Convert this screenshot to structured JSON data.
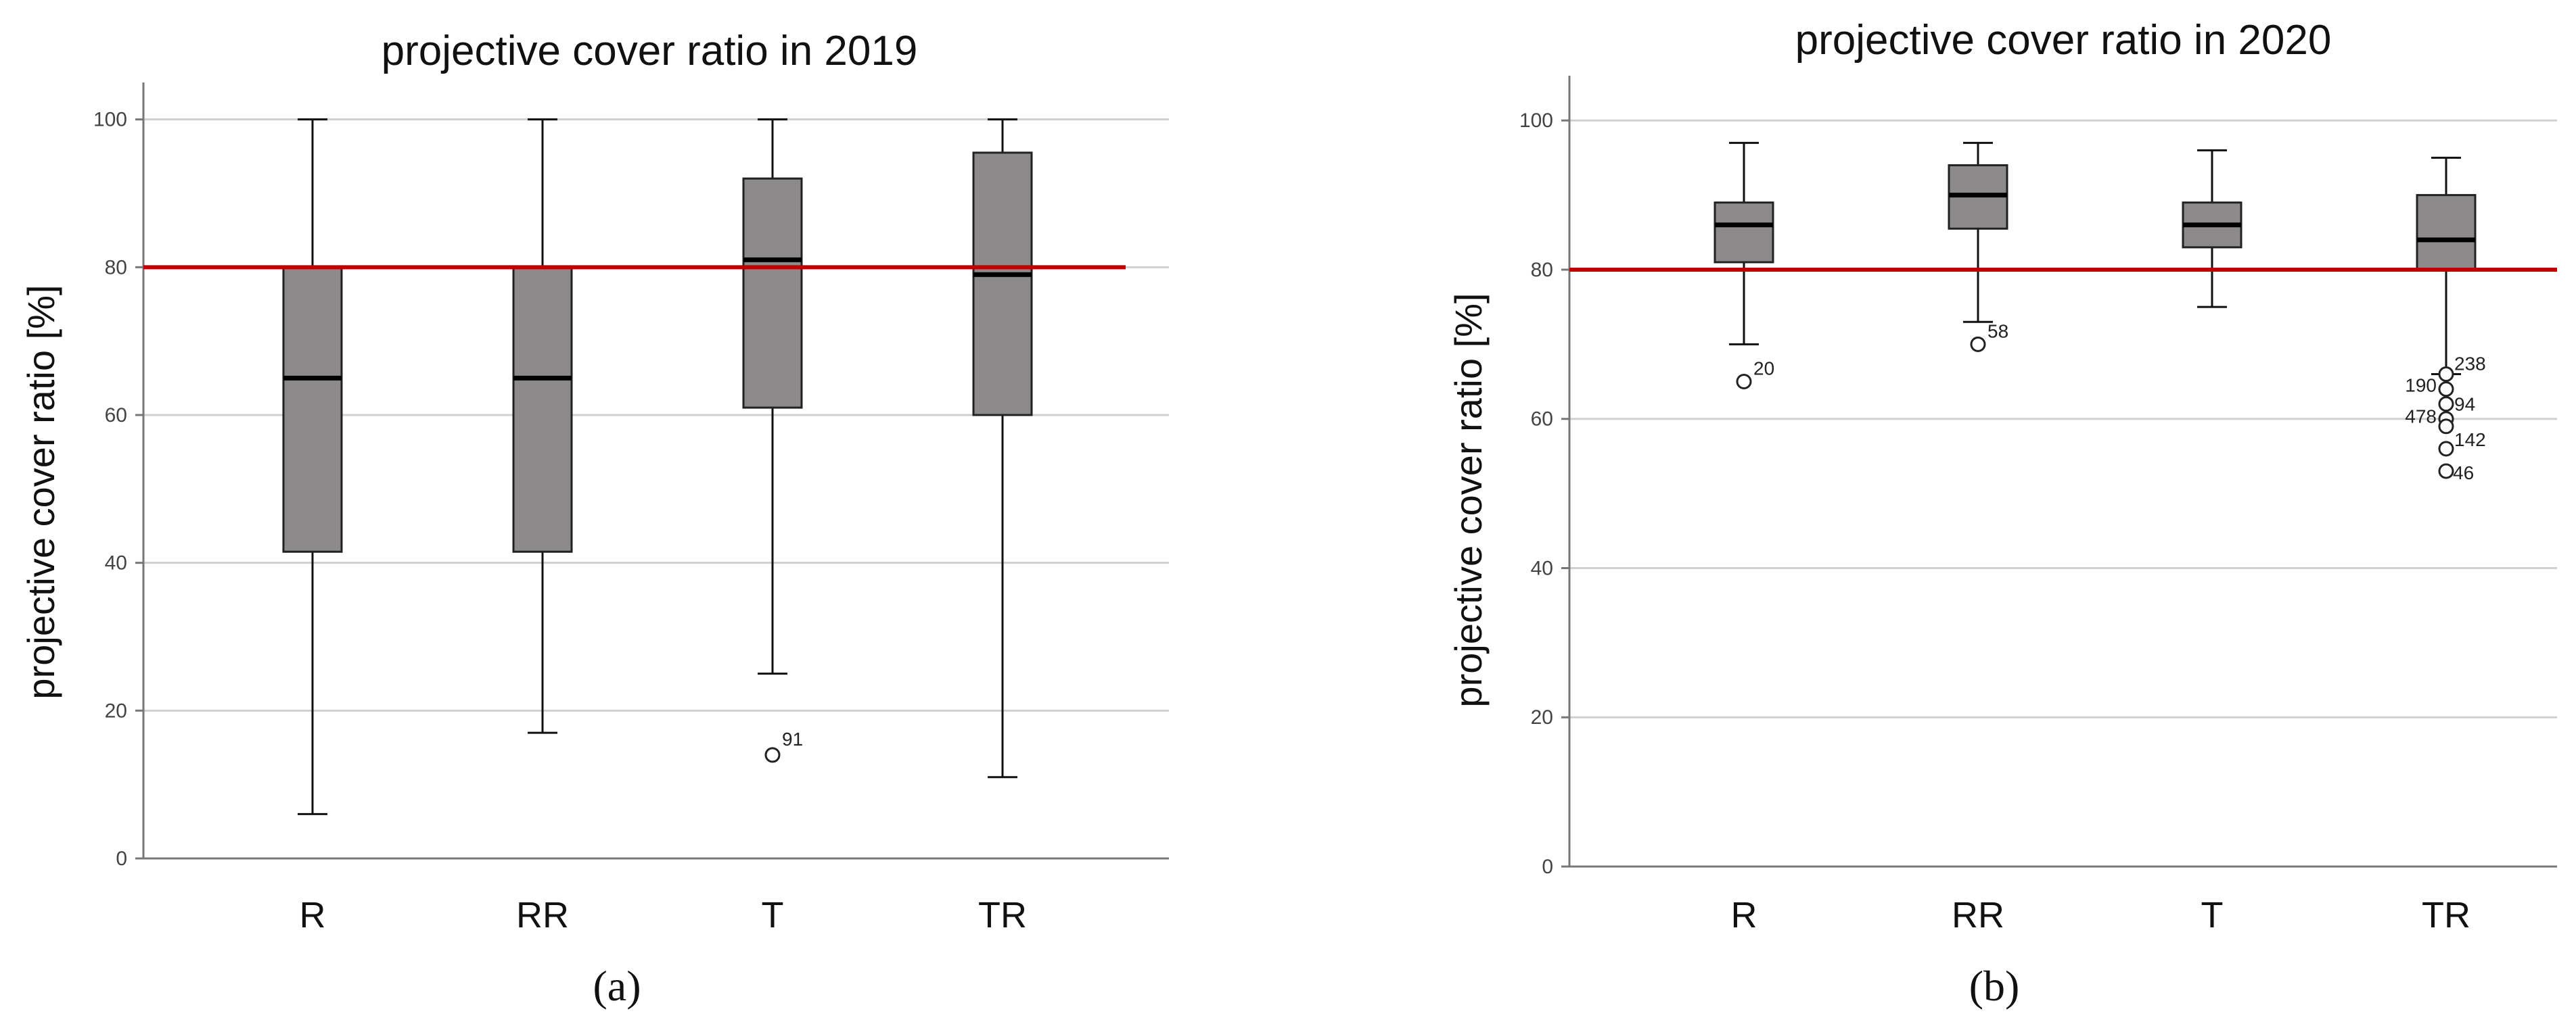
{
  "figure": {
    "panels": [
      "a",
      "b"
    ],
    "captions": [
      "(a)",
      "(b)"
    ]
  },
  "chart_data": [
    {
      "type": "boxplot",
      "panel": "a",
      "title": "projective cover ratio in 2019",
      "xlabel": "",
      "ylabel": "projective cover ratio [%]",
      "categories": [
        "R",
        "RR",
        "T",
        "TR"
      ],
      "ylim": [
        0,
        105
      ],
      "yticks": [
        0,
        20,
        40,
        60,
        80,
        100
      ],
      "grid": true,
      "reference_line": {
        "y": 80,
        "color": "#c00000"
      },
      "box_color": "#8c8a8a",
      "boxes": [
        {
          "category": "R",
          "whisker_low": 6,
          "q1": 41.5,
          "median": 65,
          "q3": 80,
          "whisker_high": 100,
          "outliers": []
        },
        {
          "category": "RR",
          "whisker_low": 17,
          "q1": 41.5,
          "median": 65,
          "q3": 80,
          "whisker_high": 100,
          "outliers": []
        },
        {
          "category": "T",
          "whisker_low": 25,
          "q1": 61,
          "median": 81,
          "q3": 92,
          "whisker_high": 100,
          "outliers": [
            {
              "value": 14,
              "label": "91"
            }
          ]
        },
        {
          "category": "TR",
          "whisker_low": 11,
          "q1": 60,
          "median": 79,
          "q3": 95.5,
          "whisker_high": 100,
          "outliers": []
        }
      ]
    },
    {
      "type": "boxplot",
      "panel": "b",
      "title": "projective cover ratio in 2020",
      "xlabel": "",
      "ylabel": "projective cover ratio [%]",
      "categories": [
        "R",
        "RR",
        "T",
        "TR"
      ],
      "ylim": [
        0,
        106
      ],
      "yticks": [
        0,
        20,
        40,
        60,
        80,
        100
      ],
      "grid": true,
      "reference_line": {
        "y": 80,
        "color": "#c00000"
      },
      "box_color": "#8c8a8a",
      "boxes": [
        {
          "category": "R",
          "whisker_low": 70,
          "q1": 81,
          "median": 86,
          "q3": 89,
          "whisker_high": 97,
          "outliers": [
            {
              "value": 65,
              "label": "20"
            }
          ]
        },
        {
          "category": "RR",
          "whisker_low": 73,
          "q1": 85.5,
          "median": 90,
          "q3": 94,
          "whisker_high": 97,
          "outliers": [
            {
              "value": 70,
              "label": "58"
            }
          ]
        },
        {
          "category": "T",
          "whisker_low": 75,
          "q1": 83,
          "median": 86,
          "q3": 89,
          "whisker_high": 96,
          "outliers": []
        },
        {
          "category": "TR",
          "whisker_low": 66,
          "q1": 80,
          "median": 84,
          "q3": 90,
          "whisker_high": 95,
          "outliers": [
            {
              "value": 66,
              "label": "238"
            },
            {
              "value": 64,
              "label": "190"
            },
            {
              "value": 62,
              "label": "94"
            },
            {
              "value": 60,
              "label": "478"
            },
            {
              "value": 59,
              "label": ""
            },
            {
              "value": 56,
              "label": "142"
            },
            {
              "value": 53,
              "label": "46"
            }
          ]
        }
      ]
    }
  ]
}
